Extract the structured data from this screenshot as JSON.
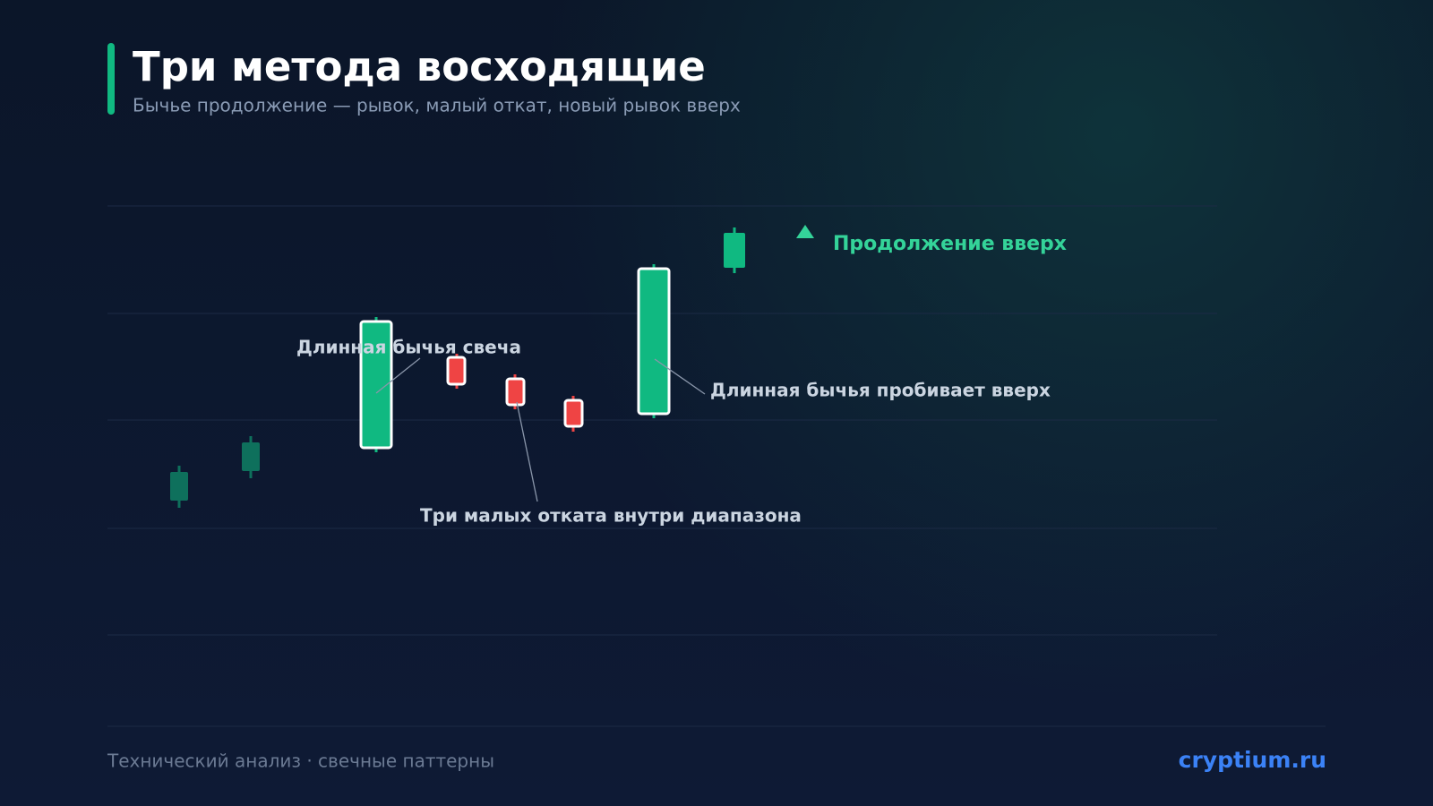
{
  "header": {
    "title": "Три метода восходящие",
    "subtitle": "Бычье продолжение — рывок, малый откат, новый рывок вверх"
  },
  "annotations": {
    "first_candle": "Длинная бычья свеча",
    "pullbacks": "Три малых отката внутри диапазона",
    "breakout": "Длинная бычья пробивает вверх",
    "continuation": "Продолжение вверх"
  },
  "footer": {
    "caption": "Технический анализ · свечные паттерны",
    "brand": "cryptium.ru"
  }
}
